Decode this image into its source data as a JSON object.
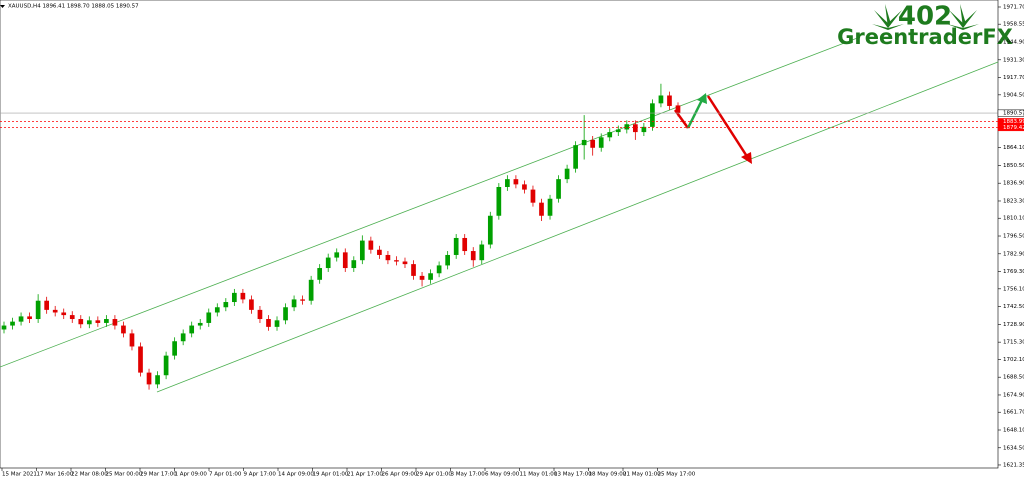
{
  "chart_data": {
    "type": "candlestick",
    "title": "XAUUSD,H4  1896.41 1898.70 1888.05 1890.57",
    "logo_number": "402",
    "logo_name": "GreentraderFX",
    "bull_color": "#00a000",
    "bear_color": "#e00000",
    "ylim": [
      1617.5,
      1977.05
    ],
    "yticks": [
      {
        "value": 1971.7,
        "label": "1971.70"
      },
      1958.55,
      {
        "value": 1944.9,
        "label": "1944.90"
      },
      {
        "value": 1931.3,
        "label": "1931.30"
      },
      {
        "value": 1917.7,
        "label": "1917.70"
      },
      {
        "value": 1904.5,
        "label": "1904.50"
      },
      {
        "value": 1864.1,
        "label": "1864.10"
      },
      {
        "value": 1850.5,
        "label": "1850.50"
      },
      {
        "value": 1836.9,
        "label": "1836.90"
      },
      {
        "value": 1823.3,
        "label": "1823.30"
      },
      {
        "value": 1810.1,
        "label": "1810.10"
      },
      {
        "value": 1796.5,
        "label": "1796.50"
      },
      {
        "value": 1782.9,
        "label": "1782.90"
      },
      {
        "value": 1769.3,
        "label": "1769.30"
      },
      {
        "value": 1756.1,
        "label": "1756.10"
      },
      {
        "value": 1742.5,
        "label": "1742.50"
      },
      {
        "value": 1728.9,
        "label": "1728.90"
      },
      {
        "value": 1715.3,
        "label": "1715.30"
      },
      {
        "value": 1702.1,
        "label": "1702.10"
      },
      {
        "value": 1688.5,
        "label": "1688.50"
      },
      {
        "value": 1674.9,
        "label": "1674.90"
      },
      {
        "value": 1661.7,
        "label": "1661.70"
      },
      {
        "value": 1648.1,
        "label": "1648.10"
      },
      {
        "value": 1634.5,
        "label": "1634.50"
      },
      1621.35
    ],
    "price_lines": [
      {
        "value": 1890.57,
        "color": "#a0a0a0"
      },
      {
        "value": 1883.99,
        "color": "#ff0000"
      },
      {
        "value": 1879.42,
        "color": "#ff0000"
      }
    ],
    "x_tick_labels": [
      "15 Mar 2021",
      "17 Mar 16:00",
      "22 Mar 08:00",
      "25 Mar 00:00",
      "29 Mar 17:00",
      "1 Apr 09:00",
      "7 Apr 01:00",
      "9 Apr 17:00",
      "14 Apr 09:00",
      "19 Apr 01:00",
      "21 Apr 17:00",
      "26 Apr 09:00",
      "29 Apr 01:00",
      "3 May 17:00",
      "6 May 09:00",
      "11 May 01:00",
      "13 May 17:00",
      "18 May 09:00",
      "21 May 01:00",
      "25 May 17:00"
    ],
    "open": [
      1725,
      1728,
      1731,
      1735,
      1733,
      1747,
      1740,
      1738,
      1736,
      1733,
      1729,
      1732,
      1730,
      1733,
      1728,
      1722,
      1712,
      1692,
      1683,
      1690,
      1705,
      1716,
      1722,
      1728,
      1730,
      1738,
      1742,
      1746,
      1753,
      1748,
      1740,
      1733,
      1727,
      1732,
      1742,
      1748,
      1747,
      1763,
      1772,
      1780,
      1784,
      1772,
      1778,
      1793,
      1786,
      1782,
      1778,
      1777,
      1775,
      1766,
      1763,
      1768,
      1774,
      1782,
      1795,
      1785,
      1778,
      1790,
      1812,
      1834,
      1840,
      1836,
      1832,
      1822,
      1812,
      1825,
      1840,
      1848,
      1866,
      1870,
      1864,
      1872,
      1876,
      1878,
      1882,
      1876,
      1880,
      1898,
      1904,
      1896.41
    ],
    "high": [
      1731,
      1734,
      1738,
      1738,
      1752,
      1750,
      1743,
      1741,
      1739,
      1736,
      1735,
      1735,
      1736,
      1736,
      1731,
      1725,
      1715,
      1695,
      1693,
      1708,
      1719,
      1725,
      1731,
      1733,
      1741,
      1745,
      1749,
      1756,
      1756,
      1751,
      1743,
      1736,
      1735,
      1745,
      1751,
      1751,
      1766,
      1775,
      1783,
      1787,
      1787,
      1781,
      1797,
      1796,
      1789,
      1785,
      1781,
      1780,
      1778,
      1769,
      1771,
      1777,
      1785,
      1798,
      1798,
      1788,
      1793,
      1815,
      1837,
      1843,
      1843,
      1839,
      1835,
      1825,
      1828,
      1843,
      1851,
      1869,
      1889,
      1873,
      1875,
      1879,
      1881,
      1885,
      1885,
      1883,
      1901,
      1913,
      1907,
      1898.7
    ],
    "low": [
      1722,
      1725,
      1728,
      1730,
      1730,
      1737,
      1735,
      1733,
      1730,
      1726,
      1726,
      1727,
      1727,
      1725,
      1719,
      1709,
      1689,
      1679,
      1680,
      1687,
      1702,
      1713,
      1719,
      1725,
      1727,
      1735,
      1739,
      1743,
      1745,
      1737,
      1730,
      1724,
      1724,
      1729,
      1739,
      1744,
      1744,
      1760,
      1769,
      1777,
      1769,
      1769,
      1775,
      1783,
      1779,
      1775,
      1774,
      1772,
      1763,
      1758,
      1760,
      1765,
      1771,
      1779,
      1782,
      1773,
      1775,
      1787,
      1809,
      1831,
      1833,
      1829,
      1819,
      1808,
      1809,
      1822,
      1837,
      1845,
      1855,
      1858,
      1861,
      1869,
      1873,
      1875,
      1870,
      1873,
      1877,
      1895,
      1893,
      1888.05
    ],
    "close": [
      1728,
      1731,
      1735,
      1733,
      1747,
      1740,
      1738,
      1736,
      1733,
      1729,
      1732,
      1730,
      1733,
      1728,
      1722,
      1712,
      1692,
      1683,
      1690,
      1705,
      1716,
      1722,
      1728,
      1730,
      1738,
      1742,
      1746,
      1753,
      1748,
      1740,
      1733,
      1727,
      1732,
      1742,
      1748,
      1747,
      1763,
      1772,
      1780,
      1784,
      1772,
      1778,
      1793,
      1786,
      1782,
      1778,
      1777,
      1775,
      1766,
      1763,
      1768,
      1774,
      1782,
      1795,
      1785,
      1778,
      1790,
      1812,
      1834,
      1840,
      1836,
      1832,
      1822,
      1812,
      1825,
      1840,
      1848,
      1866,
      1870,
      1864,
      1872,
      1876,
      1878,
      1882,
      1876,
      1880,
      1898,
      1904,
      1896,
      1890.57
    ]
  }
}
